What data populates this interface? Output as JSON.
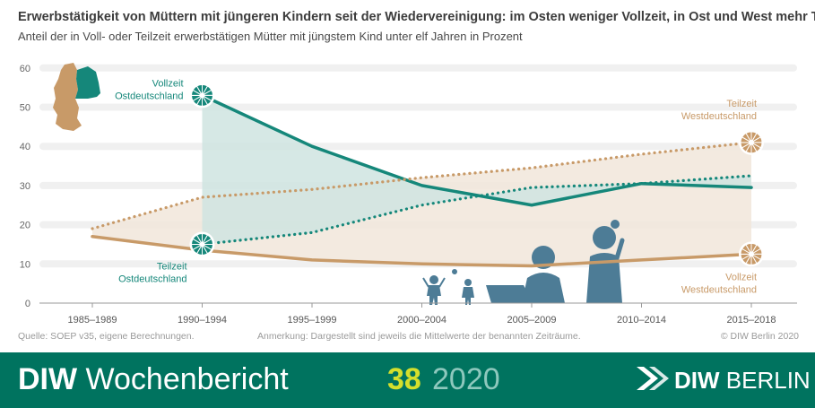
{
  "title": "Erwerbstätigkeit von Müttern mit jüngeren Kindern seit der Wiedervereinigung: im Osten weniger Vollzeit, in Ost und West mehr Teilzeit",
  "subtitle": "Anteil der in Voll- oder Teilzeit erwerbstätigen Mütter mit jüngstem Kind unter elf Jahren in Prozent",
  "footer": {
    "source": "Quelle: SOEP v35, eigene Berechnungen.",
    "note": "Anmerkung: Dargestellt sind jeweils die Mittelwerte der benannten Zeiträume.",
    "copyright": "© DIW Berlin 2020"
  },
  "banner": {
    "publication_bold": "DIW",
    "publication_rest": "Wochenbericht",
    "issue": "38",
    "year": "2020",
    "logo_bold": "DIW",
    "logo_rest": "BERLIN",
    "background": "#00735f"
  },
  "colors": {
    "east": "#15877a",
    "west": "#c89a68",
    "east_fill": "#cfe4e1",
    "west_fill": "#f1e6da",
    "figures": "#4d7c96",
    "map_east": "#15877a",
    "map_west": "#c89a68"
  },
  "chart_data": {
    "type": "line",
    "categories": [
      "1985–1989",
      "1990–1994",
      "1995–1999",
      "2000–2004",
      "2005–2009",
      "2010–2014",
      "2015–2018"
    ],
    "ylim": [
      0,
      60
    ],
    "yticks": [
      0,
      10,
      20,
      30,
      40,
      50,
      60
    ],
    "grid": true,
    "series": [
      {
        "key": "vollzeit_ost",
        "label": [
          "Vollzeit",
          "Ostdeutschland"
        ],
        "style": "solid",
        "color": "east",
        "values": [
          null,
          53,
          40,
          30,
          25,
          30.5,
          29.5
        ]
      },
      {
        "key": "teilzeit_ost",
        "label": [
          "Teilzeit",
          "Ostdeutschland"
        ],
        "style": "dotted",
        "color": "east",
        "values": [
          null,
          15,
          18,
          25,
          29.5,
          30.5,
          32.5
        ]
      },
      {
        "key": "teilzeit_west",
        "label": [
          "Teilzeit",
          "Westdeutschland"
        ],
        "style": "dotted",
        "color": "west",
        "values": [
          19,
          27,
          29,
          32,
          34.5,
          38,
          41
        ]
      },
      {
        "key": "vollzeit_west",
        "label": [
          "Vollzeit",
          "Westdeutschland"
        ],
        "style": "solid",
        "color": "west",
        "values": [
          17,
          13.5,
          11,
          10,
          9.5,
          11,
          12.5
        ]
      }
    ]
  }
}
